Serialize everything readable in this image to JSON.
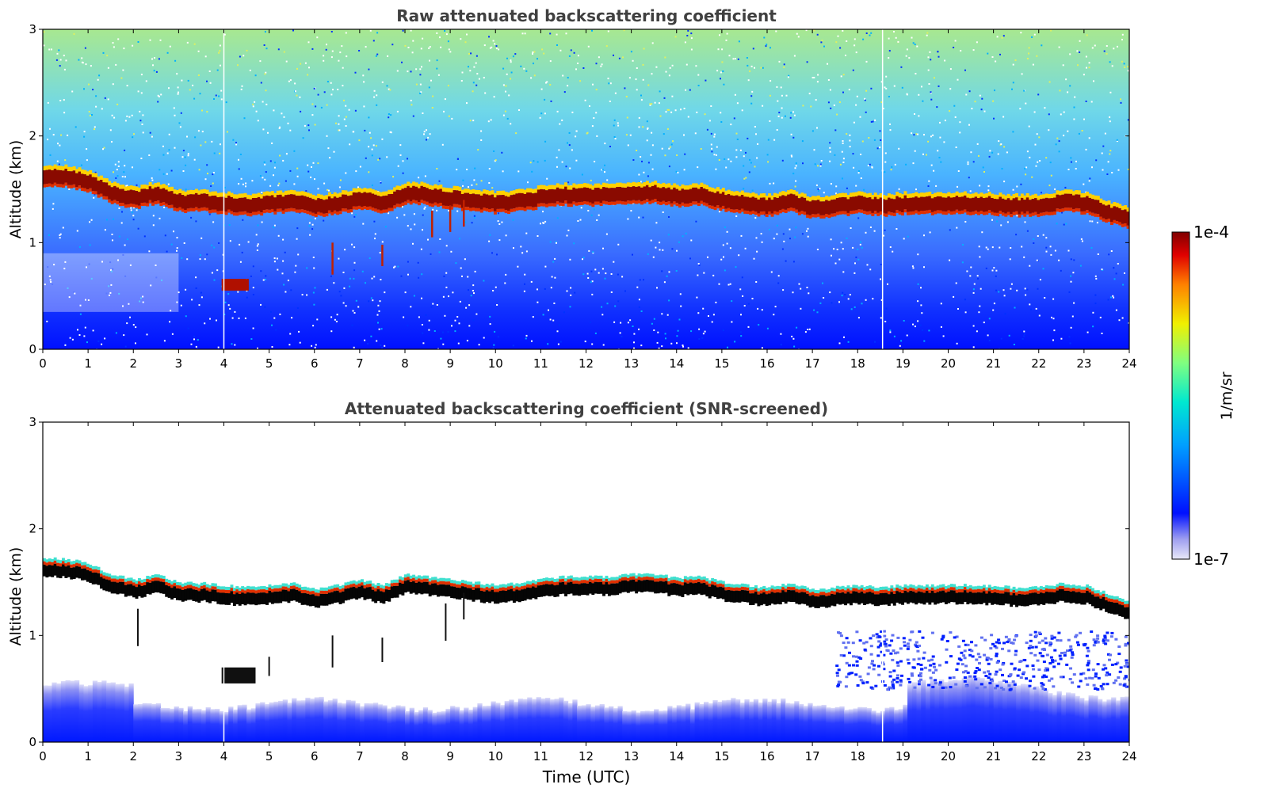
{
  "chart_data": [
    {
      "type": "heatmap",
      "title": "Raw attenuated backscattering coefficient",
      "xlabel": "",
      "ylabel": "Altitude (km)",
      "xlim": [
        0,
        24
      ],
      "ylim": [
        0,
        3
      ],
      "xticks": [
        "0",
        "1",
        "2",
        "3",
        "4",
        "5",
        "6",
        "7",
        "8",
        "9",
        "10",
        "11",
        "12",
        "13",
        "14",
        "15",
        "16",
        "17",
        "18",
        "19",
        "20",
        "21",
        "22",
        "23",
        "24"
      ],
      "yticks": [
        "0",
        "1",
        "2",
        "3"
      ],
      "cloud_base_km": {
        "time_utc": [
          0,
          0.5,
          1,
          1.5,
          2,
          2.5,
          3,
          3.5,
          4,
          4.5,
          5,
          5.5,
          6,
          6.5,
          7,
          7.5,
          8,
          8.5,
          9,
          9.5,
          10,
          10.5,
          11,
          11.5,
          12,
          12.5,
          13,
          13.5,
          14,
          14.5,
          15,
          15.5,
          16,
          16.5,
          17,
          17.5,
          18,
          18.5,
          19,
          19.5,
          20,
          20.5,
          21,
          21.5,
          22,
          22.5,
          23,
          23.5,
          24
        ],
        "altitude_km": [
          1.55,
          1.55,
          1.5,
          1.4,
          1.35,
          1.4,
          1.32,
          1.32,
          1.3,
          1.28,
          1.3,
          1.32,
          1.27,
          1.3,
          1.35,
          1.3,
          1.4,
          1.38,
          1.35,
          1.33,
          1.3,
          1.32,
          1.36,
          1.38,
          1.38,
          1.38,
          1.4,
          1.4,
          1.37,
          1.38,
          1.33,
          1.3,
          1.28,
          1.32,
          1.26,
          1.28,
          1.3,
          1.28,
          1.3,
          1.3,
          1.3,
          1.3,
          1.29,
          1.28,
          1.28,
          1.32,
          1.3,
          1.22,
          1.15
        ]
      }
    },
    {
      "type": "heatmap",
      "title": "Attenuated backscattering coefficient (SNR-screened)",
      "xlabel": "Time (UTC)",
      "ylabel": "Altitude (km)",
      "xlim": [
        0,
        24
      ],
      "ylim": [
        0,
        3
      ],
      "xticks": [
        "0",
        "1",
        "2",
        "3",
        "4",
        "5",
        "6",
        "7",
        "8",
        "9",
        "10",
        "11",
        "12",
        "13",
        "14",
        "15",
        "16",
        "17",
        "18",
        "19",
        "20",
        "21",
        "22",
        "23",
        "24"
      ],
      "yticks": [
        "0",
        "1",
        "2",
        "3"
      ]
    }
  ],
  "colorbar": {
    "label": "1/m/sr",
    "max_label": "1e-4",
    "min_label": "1e-7",
    "scale": "log",
    "colors": [
      "#e8e8f8",
      "#a0a0f0",
      "#0010ff",
      "#00a0ff",
      "#00e8d0",
      "#80ff80",
      "#f0f000",
      "#ff8000",
      "#e00000",
      "#800000"
    ]
  }
}
